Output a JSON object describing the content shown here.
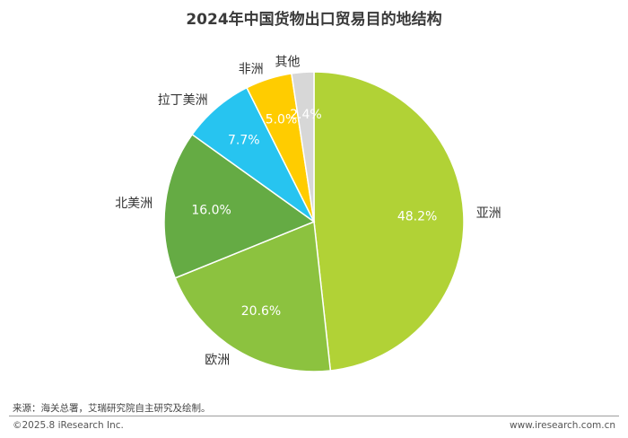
{
  "chart_data": {
    "type": "pie",
    "title": "2024年中国货物出口贸易目的地结构",
    "slices": [
      {
        "label": "亚洲",
        "value": 48.2,
        "value_label": "48.2%",
        "color": "#b1d236"
      },
      {
        "label": "欧洲",
        "value": 20.6,
        "value_label": "20.6%",
        "color": "#8cc23f"
      },
      {
        "label": "北美洲",
        "value": 16.0,
        "value_label": "16.0%",
        "color": "#65ab44"
      },
      {
        "label": "拉丁美洲",
        "value": 7.7,
        "value_label": "7.7%",
        "color": "#27c4f0"
      },
      {
        "label": "非洲",
        "value": 5.0,
        "value_label": "5.0%",
        "color": "#ffcc00"
      },
      {
        "label": "其他",
        "value": 2.4,
        "value_label": "2.4%",
        "color": "#d7d7d7"
      }
    ],
    "start": "12 o'clock",
    "direction": "clockwise",
    "legend": "none"
  },
  "footer": {
    "source": "来源：海关总署，艾瑞研究院自主研究及绘制。",
    "copyright": "©2025.8 iResearch Inc.",
    "website": "www.iresearch.com.cn"
  }
}
